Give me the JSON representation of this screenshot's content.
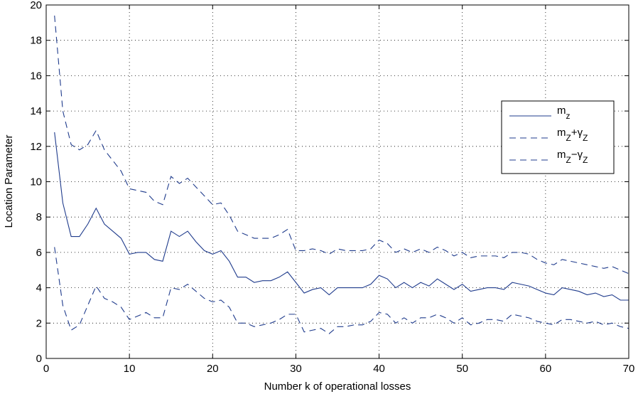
{
  "chart_data": {
    "type": "line",
    "title": "",
    "xlabel": "Number k of operational losses",
    "ylabel": "Location Parameter",
    "xlim": [
      0,
      70
    ],
    "ylim": [
      0,
      20
    ],
    "xticks": [
      0,
      10,
      20,
      30,
      40,
      50,
      60,
      70
    ],
    "yticks": [
      0,
      2,
      4,
      6,
      8,
      10,
      12,
      14,
      16,
      18,
      20
    ],
    "grid": true,
    "legend_position": "right",
    "line_color": "#1f3b8c",
    "x": [
      1,
      2,
      3,
      4,
      5,
      6,
      7,
      8,
      9,
      10,
      11,
      12,
      13,
      14,
      15,
      16,
      17,
      18,
      19,
      20,
      21,
      22,
      23,
      24,
      25,
      26,
      27,
      28,
      29,
      30,
      31,
      32,
      33,
      34,
      35,
      36,
      37,
      38,
      39,
      40,
      41,
      42,
      43,
      44,
      45,
      46,
      47,
      48,
      49,
      50,
      51,
      52,
      53,
      54,
      55,
      56,
      57,
      58,
      59,
      60,
      61,
      62,
      63,
      64,
      65,
      66,
      67,
      68,
      69,
      70
    ],
    "series": [
      {
        "name": "m",
        "sub": "z",
        "style": "solid",
        "values": [
          12.8,
          8.8,
          6.9,
          6.9,
          7.6,
          8.5,
          7.6,
          7.2,
          6.8,
          5.9,
          6.0,
          6.0,
          5.6,
          5.5,
          7.2,
          6.9,
          7.2,
          6.6,
          6.1,
          5.9,
          6.1,
          5.5,
          4.6,
          4.6,
          4.3,
          4.4,
          4.4,
          4.6,
          4.9,
          4.3,
          3.7,
          3.9,
          4.0,
          3.6,
          4.0,
          4.0,
          4.0,
          4.0,
          4.2,
          4.7,
          4.5,
          4.0,
          4.3,
          4.0,
          4.3,
          4.1,
          4.5,
          4.2,
          3.9,
          4.2,
          3.8,
          3.9,
          4.0,
          4.0,
          3.9,
          4.3,
          4.2,
          4.1,
          3.9,
          3.7,
          3.6,
          4.0,
          3.9,
          3.8,
          3.6,
          3.7,
          3.5,
          3.6,
          3.3,
          3.3
        ]
      },
      {
        "name": "m",
        "sub": "Z",
        "op": "+",
        "name2": "γ",
        "sub2": "Z",
        "style": "dashed",
        "values": [
          19.4,
          14.0,
          12.1,
          11.8,
          12.1,
          12.9,
          11.8,
          11.2,
          10.6,
          9.6,
          9.5,
          9.4,
          8.9,
          8.7,
          10.3,
          9.9,
          10.2,
          9.7,
          9.2,
          8.7,
          8.8,
          8.1,
          7.2,
          7.0,
          6.8,
          6.8,
          6.8,
          7.0,
          7.3,
          6.1,
          6.1,
          6.2,
          6.1,
          5.9,
          6.2,
          6.1,
          6.1,
          6.1,
          6.2,
          6.7,
          6.5,
          6.0,
          6.2,
          6.0,
          6.2,
          6.0,
          6.3,
          6.1,
          5.8,
          6.0,
          5.7,
          5.8,
          5.8,
          5.8,
          5.7,
          6.0,
          6.0,
          5.9,
          5.6,
          5.4,
          5.3,
          5.6,
          5.5,
          5.4,
          5.3,
          5.2,
          5.1,
          5.2,
          5.0,
          4.8
        ]
      },
      {
        "name": "m",
        "sub": "Z",
        "op": "−",
        "name2": "γ",
        "sub2": "Z",
        "style": "dashed",
        "values": [
          6.3,
          3.0,
          1.6,
          1.9,
          3.0,
          4.1,
          3.4,
          3.2,
          2.9,
          2.2,
          2.4,
          2.6,
          2.3,
          2.3,
          4.0,
          3.9,
          4.2,
          3.8,
          3.4,
          3.2,
          3.3,
          2.9,
          2.0,
          2.0,
          1.8,
          1.9,
          2.0,
          2.2,
          2.5,
          2.5,
          1.5,
          1.6,
          1.7,
          1.4,
          1.8,
          1.8,
          1.9,
          1.9,
          2.1,
          2.6,
          2.5,
          2.0,
          2.3,
          2.0,
          2.3,
          2.3,
          2.5,
          2.3,
          2.0,
          2.3,
          1.9,
          2.0,
          2.2,
          2.2,
          2.1,
          2.5,
          2.4,
          2.3,
          2.1,
          2.0,
          1.9,
          2.2,
          2.2,
          2.1,
          2.0,
          2.1,
          1.9,
          2.0,
          1.8,
          1.7
        ]
      }
    ]
  }
}
